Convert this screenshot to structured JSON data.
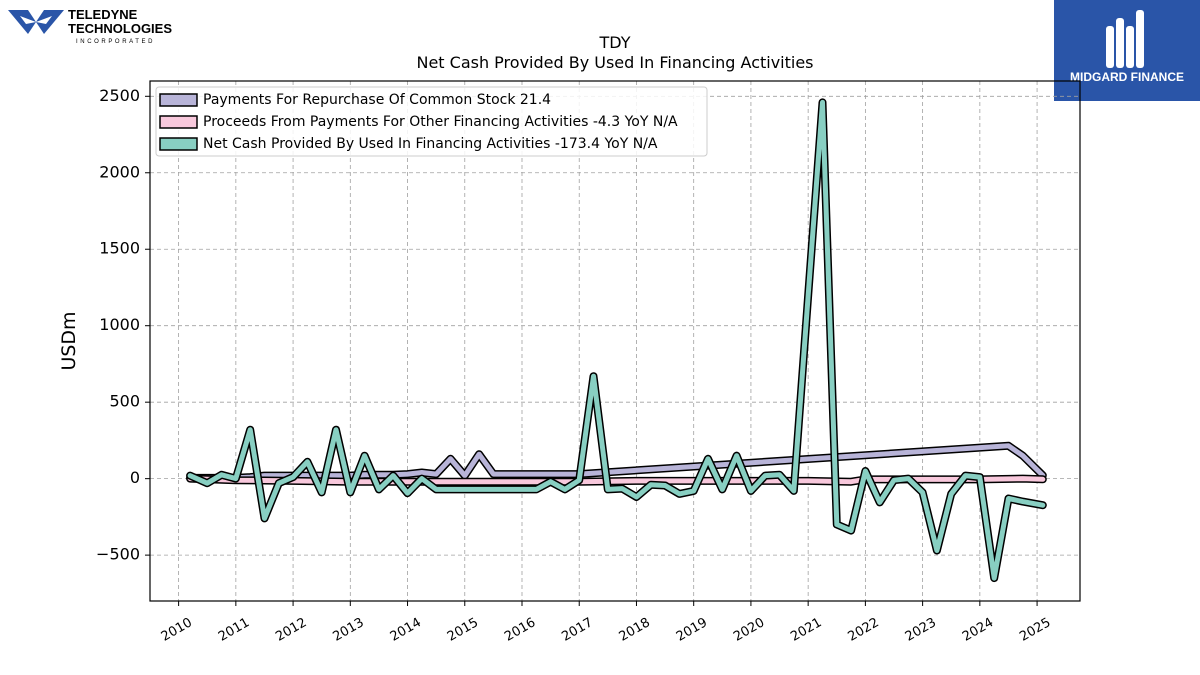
{
  "branding": {
    "company_line1": "TELEDYNE",
    "company_line2": "TECHNOLOGIES",
    "company_line3": "INCORPORATED",
    "watermark": "MIDGARD FINANCE",
    "watermark_bg": "#2a55a8"
  },
  "chart_data": {
    "type": "line",
    "title": "TDY",
    "subtitle": "Net Cash Provided By Used In Financing Activities",
    "ylabel": "USDm",
    "xlabel": "",
    "ylim": [
      -800,
      2600
    ],
    "xlim": [
      2009.5,
      2025.75
    ],
    "yticks": [
      2500,
      2000,
      1500,
      1000,
      500,
      0,
      -500
    ],
    "ytick_labels": [
      "2500",
      "2000",
      "1500",
      "1000",
      "500",
      "0",
      "−500"
    ],
    "xticks": [
      2010,
      2011,
      2012,
      2013,
      2014,
      2015,
      2016,
      2017,
      2018,
      2019,
      2020,
      2021,
      2022,
      2023,
      2024,
      2025
    ],
    "grid": true,
    "legend_position": "top-left",
    "series": [
      {
        "name": "Payments For Repurchase Of Common Stock",
        "legend_label": "Payments For Repurchase Of Common Stock  21.4",
        "color": "#b8b4d8",
        "x": [
          2010.2,
          2010.5,
          2010.75,
          2011.0,
          2011.25,
          2011.5,
          2011.75,
          2012.0,
          2012.25,
          2012.5,
          2012.75,
          2013.0,
          2013.25,
          2013.5,
          2013.75,
          2014.0,
          2014.25,
          2014.5,
          2014.75,
          2015.0,
          2015.25,
          2015.5,
          2017.0,
          2024.5,
          2024.75,
          2025.1
        ],
        "y": [
          5,
          5,
          5,
          5,
          10,
          20,
          20,
          20,
          20,
          20,
          20,
          20,
          25,
          25,
          25,
          30,
          40,
          30,
          130,
          20,
          160,
          30,
          30,
          215,
          150,
          21.4
        ]
      },
      {
        "name": "Proceeds From Payments For Other Financing Activities",
        "legend_label": "Proceeds From Payments For Other Financing Activities  -4.3 YoY N/A",
        "color": "#f8c8dc",
        "x": [
          2010.2,
          2011.0,
          2012.0,
          2013.0,
          2014.0,
          2015.0,
          2016.0,
          2017.0,
          2018.0,
          2019.0,
          2020.0,
          2021.0,
          2021.75,
          2022.0,
          2023.0,
          2024.0,
          2024.75,
          2025.1
        ],
        "y": [
          0,
          -10,
          -15,
          -20,
          -20,
          -20,
          -20,
          -20,
          -15,
          -15,
          -15,
          -15,
          -20,
          -5,
          -5,
          -5,
          0,
          -4.3
        ]
      },
      {
        "name": "Net Cash Provided By Used In Financing Activities",
        "legend_label": "Net Cash Provided By Used In Financing Activities  -173.4 YoY N/A",
        "color": "#88cfc2",
        "x": [
          2010.2,
          2010.5,
          2010.75,
          2011.0,
          2011.25,
          2011.5,
          2011.75,
          2012.0,
          2012.25,
          2012.5,
          2012.75,
          2013.0,
          2013.25,
          2013.5,
          2013.75,
          2014.0,
          2014.25,
          2014.5,
          2014.75,
          2015.0,
          2015.25,
          2015.75,
          2016.25,
          2016.5,
          2016.75,
          2017.0,
          2017.25,
          2017.5,
          2017.75,
          2018.0,
          2018.25,
          2018.5,
          2018.75,
          2019.0,
          2019.25,
          2019.5,
          2019.75,
          2020.0,
          2020.25,
          2020.5,
          2020.75,
          2021.0,
          2021.25,
          2021.5,
          2021.75,
          2022.0,
          2022.25,
          2022.5,
          2022.75,
          2023.0,
          2023.25,
          2023.5,
          2023.75,
          2024.0,
          2024.25,
          2024.5,
          2024.75,
          2025.1
        ],
        "y": [
          20,
          -30,
          25,
          0,
          320,
          -260,
          -30,
          10,
          110,
          -90,
          320,
          -90,
          150,
          -70,
          20,
          -95,
          0,
          -70,
          -70,
          -70,
          -70,
          -70,
          -70,
          -20,
          -70,
          -10,
          670,
          -70,
          -65,
          -120,
          -40,
          -45,
          -100,
          -80,
          130,
          -70,
          150,
          -80,
          20,
          25,
          -80,
          1200,
          2460,
          -300,
          -340,
          50,
          -155,
          -10,
          0,
          -90,
          -470,
          -100,
          20,
          10,
          -650,
          -130,
          -150,
          -173.4
        ]
      }
    ]
  }
}
